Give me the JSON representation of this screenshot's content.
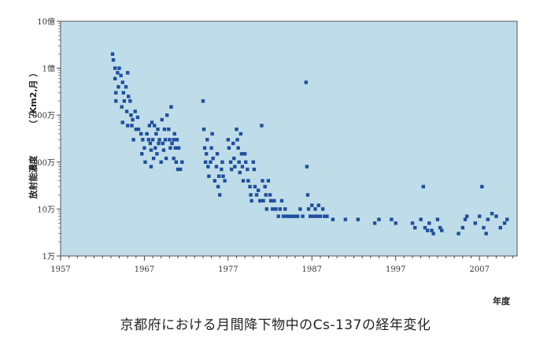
{
  "chart_data": {
    "type": "scatter",
    "title": "京都府における月間降下物中のCs-137の経年変化",
    "xlabel": "年度",
    "ylabel": "放射能濃度",
    "ylabel_unit": "（ /Km2,月 ）",
    "y_scale": "log",
    "xlim": [
      1957,
      2011.5
    ],
    "ylim": [
      10000,
      1000000000
    ],
    "x_ticks": [
      1957,
      1967,
      1977,
      1987,
      1997,
      2007
    ],
    "x_tick_labels": [
      "1957",
      "1967",
      "1977",
      "1987",
      "1997",
      "2007"
    ],
    "y_ticks": [
      10000,
      100000,
      1000000,
      10000000,
      100000000,
      1000000000
    ],
    "y_tick_labels": [
      "1万",
      "10万",
      "100万",
      "1000万",
      "1億",
      "10億"
    ],
    "marker_color": "#1f4e9e",
    "background_color": "#bfdde9",
    "grid": false,
    "series": [
      {
        "points": [
          [
            1963.2,
            200000000
          ],
          [
            1963.3,
            150000000
          ],
          [
            1963.5,
            100000000
          ],
          [
            1963.5,
            60000000
          ],
          [
            1963.6,
            30000000
          ],
          [
            1963.6,
            20000000
          ],
          [
            1963.8,
            80000000
          ],
          [
            1963.9,
            40000000
          ],
          [
            1964.0,
            100000000
          ],
          [
            1964.2,
            70000000
          ],
          [
            1964.3,
            15000000
          ],
          [
            1964.4,
            50000000
          ],
          [
            1964.4,
            7000000
          ],
          [
            1964.5,
            30000000
          ],
          [
            1964.6,
            20000000
          ],
          [
            1964.8,
            40000000
          ],
          [
            1964.9,
            12000000
          ],
          [
            1965.0,
            80000000
          ],
          [
            1965.0,
            6000000
          ],
          [
            1965.1,
            25000000
          ],
          [
            1965.3,
            20000000
          ],
          [
            1965.4,
            10000000
          ],
          [
            1965.5,
            6000000
          ],
          [
            1965.6,
            8000000
          ],
          [
            1965.7,
            3000000
          ],
          [
            1965.9,
            12000000
          ],
          [
            1966.0,
            5000000
          ],
          [
            1966.2,
            9000000
          ],
          [
            1966.3,
            5000000
          ],
          [
            1966.6,
            4000000
          ],
          [
            1966.7,
            1500000
          ],
          [
            1966.8,
            3000000
          ],
          [
            1967.0,
            2000000
          ],
          [
            1967.1,
            1000000
          ],
          [
            1967.3,
            4000000
          ],
          [
            1967.5,
            3000000
          ],
          [
            1967.6,
            6000000
          ],
          [
            1967.7,
            2500000
          ],
          [
            1967.8,
            1800000
          ],
          [
            1967.8,
            800000
          ],
          [
            1967.9,
            7000000
          ],
          [
            1968.0,
            3000000
          ],
          [
            1968.1,
            1200000
          ],
          [
            1968.2,
            6000000
          ],
          [
            1968.3,
            2000000
          ],
          [
            1968.4,
            4000000
          ],
          [
            1968.5,
            1500000
          ],
          [
            1968.6,
            5000000
          ],
          [
            1968.7,
            2500000
          ],
          [
            1968.8,
            3000000
          ],
          [
            1969.0,
            1000000
          ],
          [
            1969.1,
            8000000
          ],
          [
            1969.2,
            2500000
          ],
          [
            1969.3,
            1800000
          ],
          [
            1969.4,
            5000000
          ],
          [
            1969.5,
            3000000
          ],
          [
            1969.6,
            1200000
          ],
          [
            1969.7,
            10000000
          ],
          [
            1969.9,
            5000000
          ],
          [
            1970.0,
            3000000
          ],
          [
            1970.1,
            2000000
          ],
          [
            1970.2,
            15000000
          ],
          [
            1970.3,
            2500000
          ],
          [
            1970.5,
            1200000
          ],
          [
            1970.5,
            3000000
          ],
          [
            1970.6,
            4000000
          ],
          [
            1970.7,
            2000000
          ],
          [
            1970.8,
            1000000
          ],
          [
            1970.9,
            3000000
          ],
          [
            1971.0,
            700000
          ],
          [
            1971.1,
            2000000
          ],
          [
            1971.3,
            700000
          ],
          [
            1971.5,
            1000000
          ],
          [
            1974.0,
            20000000
          ],
          [
            1974.1,
            5000000
          ],
          [
            1974.2,
            2000000
          ],
          [
            1974.3,
            1000000
          ],
          [
            1974.4,
            1500000
          ],
          [
            1974.5,
            3000000
          ],
          [
            1974.6,
            800000
          ],
          [
            1974.7,
            500000
          ],
          [
            1974.9,
            1000000
          ],
          [
            1975.0,
            2000000
          ],
          [
            1975.1,
            4000000
          ],
          [
            1975.2,
            1200000
          ],
          [
            1975.4,
            400000
          ],
          [
            1975.6,
            800000
          ],
          [
            1975.7,
            1500000
          ],
          [
            1975.8,
            300000
          ],
          [
            1975.9,
            500000
          ],
          [
            1976.0,
            200000
          ],
          [
            1976.2,
            700000
          ],
          [
            1976.3,
            1000000
          ],
          [
            1976.4,
            500000
          ],
          [
            1976.6,
            400000
          ],
          [
            1977.0,
            3000000
          ],
          [
            1977.1,
            2000000
          ],
          [
            1977.3,
            1000000
          ],
          [
            1977.4,
            700000
          ],
          [
            1977.6,
            2500000
          ],
          [
            1977.7,
            1200000
          ],
          [
            1977.8,
            800000
          ],
          [
            1978.0,
            5000000
          ],
          [
            1978.1,
            3000000
          ],
          [
            1978.2,
            2000000
          ],
          [
            1978.3,
            1000000
          ],
          [
            1978.4,
            600000
          ],
          [
            1978.5,
            4000000
          ],
          [
            1978.6,
            1500000
          ],
          [
            1978.7,
            800000
          ],
          [
            1978.8,
            400000
          ],
          [
            1979.0,
            1500000
          ],
          [
            1979.1,
            1000000
          ],
          [
            1979.3,
            700000
          ],
          [
            1979.4,
            400000
          ],
          [
            1979.6,
            300000
          ],
          [
            1979.7,
            200000
          ],
          [
            1979.8,
            150000
          ],
          [
            1980.0,
            1000000
          ],
          [
            1980.1,
            700000
          ],
          [
            1980.2,
            300000
          ],
          [
            1980.4,
            200000
          ],
          [
            1980.6,
            250000
          ],
          [
            1980.8,
            150000
          ],
          [
            1981.0,
            6000000
          ],
          [
            1981.1,
            400000
          ],
          [
            1981.2,
            150000
          ],
          [
            1981.4,
            300000
          ],
          [
            1981.5,
            200000
          ],
          [
            1981.6,
            100000
          ],
          [
            1981.8,
            400000
          ],
          [
            1982.0,
            200000
          ],
          [
            1982.1,
            150000
          ],
          [
            1982.3,
            100000
          ],
          [
            1982.5,
            150000
          ],
          [
            1982.7,
            100000
          ],
          [
            1983.0,
            70000
          ],
          [
            1983.2,
            100000
          ],
          [
            1983.4,
            150000
          ],
          [
            1983.6,
            70000
          ],
          [
            1983.8,
            100000
          ],
          [
            1984.0,
            70000
          ],
          [
            1984.3,
            70000
          ],
          [
            1984.6,
            70000
          ],
          [
            1985.0,
            70000
          ],
          [
            1985.3,
            70000
          ],
          [
            1985.6,
            100000
          ],
          [
            1985.9,
            70000
          ],
          [
            1986.3,
            50000000
          ],
          [
            1986.4,
            800000
          ],
          [
            1986.5,
            200000
          ],
          [
            1986.6,
            100000
          ],
          [
            1986.8,
            70000
          ],
          [
            1987.0,
            120000
          ],
          [
            1987.2,
            70000
          ],
          [
            1987.4,
            100000
          ],
          [
            1987.6,
            70000
          ],
          [
            1987.8,
            120000
          ],
          [
            1988.0,
            70000
          ],
          [
            1988.3,
            100000
          ],
          [
            1988.5,
            70000
          ],
          [
            1988.8,
            70000
          ],
          [
            1989.5,
            60000
          ],
          [
            1991.0,
            60000
          ],
          [
            1992.5,
            60000
          ],
          [
            1994.5,
            50000
          ],
          [
            1995.0,
            60000
          ],
          [
            1996.5,
            60000
          ],
          [
            1997.0,
            50000
          ],
          [
            1999.0,
            50000
          ],
          [
            1999.3,
            40000
          ],
          [
            2000.0,
            60000
          ],
          [
            2000.3,
            300000
          ],
          [
            2000.5,
            40000
          ],
          [
            2000.8,
            35000
          ],
          [
            2001.0,
            50000
          ],
          [
            2001.3,
            35000
          ],
          [
            2001.5,
            30000
          ],
          [
            2002.0,
            60000
          ],
          [
            2002.3,
            40000
          ],
          [
            2002.5,
            35000
          ],
          [
            2004.5,
            30000
          ],
          [
            2005.0,
            40000
          ],
          [
            2005.3,
            60000
          ],
          [
            2005.5,
            70000
          ],
          [
            2006.5,
            50000
          ],
          [
            2007.0,
            70000
          ],
          [
            2007.3,
            300000
          ],
          [
            2007.5,
            40000
          ],
          [
            2007.8,
            30000
          ],
          [
            2008.0,
            60000
          ],
          [
            2008.5,
            80000
          ],
          [
            2009.0,
            70000
          ],
          [
            2009.5,
            40000
          ],
          [
            2010.0,
            50000
          ],
          [
            2010.3,
            60000
          ]
        ]
      }
    ]
  }
}
